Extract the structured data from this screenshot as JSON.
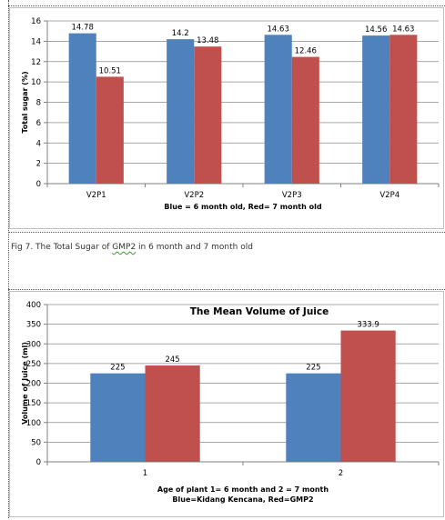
{
  "caption": {
    "prefix": "Fig 7.",
    "text_before": " The Total Sugar of ",
    "underlined": "GMP2",
    "text_after": "  in 6 month and 7 month old"
  },
  "chart_data": [
    {
      "type": "bar",
      "title": "",
      "categories": [
        "V2P1",
        "V2P2",
        "V2P3",
        "V2P4"
      ],
      "series": [
        {
          "color": "#4f81bd",
          "values": [
            14.78,
            14.2,
            14.63,
            14.56
          ]
        },
        {
          "color": "#c0504d",
          "values": [
            10.51,
            13.48,
            12.46,
            14.63
          ]
        }
      ],
      "data_labels": [
        [
          "14.78",
          "14.2",
          "14.63",
          "14.56"
        ],
        [
          "10.51",
          "13.48",
          "12.46",
          "14.63"
        ]
      ],
      "xlabel": "Blue = 6 month old, Red= 7 month old",
      "ylabel": "Total sugar (%)",
      "ylim": [
        0,
        16
      ],
      "yticks": [
        0,
        2,
        4,
        6,
        8,
        10,
        12,
        14,
        16
      ],
      "grid": true,
      "legend": "none"
    },
    {
      "type": "bar",
      "title": "The Mean Volume of Juice",
      "categories": [
        "1",
        "2"
      ],
      "series": [
        {
          "color": "#4f81bd",
          "values": [
            225,
            225
          ]
        },
        {
          "color": "#c0504d",
          "values": [
            245,
            333.9
          ]
        }
      ],
      "data_labels": [
        [
          "225",
          "225"
        ],
        [
          "245",
          "333.9"
        ]
      ],
      "xlabel": [
        "Age of plant 1= 6 month and 2 = 7 month",
        "Blue=Kidang Kencana, Red=GMP2"
      ],
      "ylabel": "Volume of Juice (ml)",
      "ylim": [
        0,
        400
      ],
      "yticks": [
        0,
        50,
        100,
        150,
        200,
        250,
        300,
        350,
        400
      ],
      "grid": true,
      "legend": "none"
    }
  ]
}
